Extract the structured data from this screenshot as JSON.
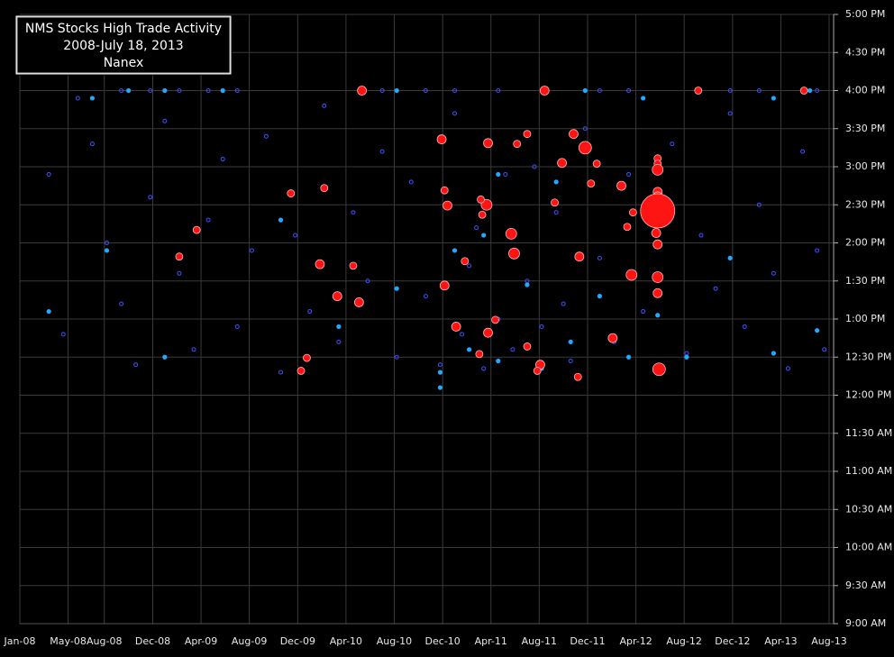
{
  "chart_data": {
    "type": "scatter",
    "title": [
      "NMS Stocks High Trade Activity",
      "2008-July 18, 2013",
      "Nanex"
    ],
    "grid": true,
    "xlim": [
      2008,
      2013.583
    ],
    "xticks": [
      {
        "value": 2008,
        "label": "Jan-08"
      },
      {
        "value": 2008.333,
        "label": "May-08"
      },
      {
        "value": 2008.583,
        "label": "Aug-08"
      },
      {
        "value": 2008.917,
        "label": "Dec-08"
      },
      {
        "value": 2009.25,
        "label": "Apr-09"
      },
      {
        "value": 2009.583,
        "label": "Aug-09"
      },
      {
        "value": 2009.917,
        "label": "Dec-09"
      },
      {
        "value": 2010.25,
        "label": "Apr-10"
      },
      {
        "value": 2010.583,
        "label": "Aug-10"
      },
      {
        "value": 2010.917,
        "label": "Dec-10"
      },
      {
        "value": 2011.25,
        "label": "Apr-11"
      },
      {
        "value": 2011.583,
        "label": "Aug-11"
      },
      {
        "value": 2011.917,
        "label": "Dec-11"
      },
      {
        "value": 2012.25,
        "label": "Apr-12"
      },
      {
        "value": 2012.583,
        "label": "Aug-12"
      },
      {
        "value": 2012.917,
        "label": "Dec-12"
      },
      {
        "value": 2013.25,
        "label": "Apr-13"
      },
      {
        "value": 2013.583,
        "label": "Aug-13"
      }
    ],
    "ylim": [
      9,
      17
    ],
    "yticks": [
      {
        "value": 9,
        "label": "9:00 AM"
      },
      {
        "value": 9.5,
        "label": "9:30 AM"
      },
      {
        "value": 10,
        "label": "10:00 AM"
      },
      {
        "value": 10.5,
        "label": "10:30 AM"
      },
      {
        "value": 11,
        "label": "11:00 AM"
      },
      {
        "value": 11.5,
        "label": "11:30 AM"
      },
      {
        "value": 12,
        "label": "12:00 PM"
      },
      {
        "value": 12.5,
        "label": "12:30 PM"
      },
      {
        "value": 13,
        "label": "1:00 PM"
      },
      {
        "value": 13.5,
        "label": "1:30 PM"
      },
      {
        "value": 14,
        "label": "2:00 PM"
      },
      {
        "value": 14.5,
        "label": "2:30 PM"
      },
      {
        "value": 15,
        "label": "3:00 PM"
      },
      {
        "value": 15.5,
        "label": "3:30 PM"
      },
      {
        "value": 16,
        "label": "4:00 PM"
      },
      {
        "value": 16.5,
        "label": "4:30 PM"
      },
      {
        "value": 17,
        "label": "5:00 PM"
      }
    ],
    "series": [
      {
        "color": "#3d52ff",
        "marker": "hollow",
        "x": [
          2008.7,
          2008.9,
          2009.1,
          2009.3,
          2009.5,
          2010.5,
          2010.8,
          2011.0,
          2011.3,
          2012.0,
          2012.2,
          2012.9,
          2013.1,
          2013.5,
          2008.2,
          2008.3,
          2008.4,
          2008.5,
          2008.6,
          2008.7,
          2008.8,
          2008.9,
          2009.0,
          2009.1,
          2009.2,
          2009.3,
          2009.4,
          2009.5,
          2009.6,
          2009.7,
          2009.8,
          2009.9,
          2010.0,
          2010.1,
          2010.2,
          2010.3,
          2010.4,
          2010.5,
          2010.6,
          2010.7,
          2010.8,
          2010.9,
          2011.0,
          2011.05,
          2011.1,
          2011.15,
          2011.2,
          2011.3,
          2011.35,
          2011.4,
          2011.5,
          2011.55,
          2011.6,
          2011.7,
          2011.75,
          2011.8,
          2011.9,
          2012.0,
          2012.1,
          2012.2,
          2012.3,
          2012.5,
          2012.6,
          2012.7,
          2012.8,
          2012.9,
          2013.0,
          2013.1,
          2013.2,
          2013.3,
          2013.4,
          2013.5,
          2013.55
        ],
        "values": [
          16,
          16,
          16,
          16,
          16,
          16,
          16,
          16,
          16,
          16,
          16,
          16,
          16,
          16,
          14.9,
          12.8,
          15.9,
          15.3,
          14.0,
          13.2,
          12.4,
          14.6,
          15.6,
          13.6,
          12.6,
          14.3,
          15.1,
          12.9,
          13.9,
          15.4,
          12.3,
          14.1,
          13.1,
          15.8,
          12.7,
          14.4,
          13.5,
          15.2,
          12.5,
          14.8,
          13.3,
          12.4,
          15.7,
          12.8,
          13.7,
          14.2,
          12.35,
          13.0,
          14.9,
          12.6,
          13.5,
          15.0,
          12.9,
          14.4,
          13.2,
          12.45,
          15.5,
          13.8,
          12.7,
          14.9,
          13.1,
          15.3,
          12.55,
          14.1,
          13.4,
          15.7,
          12.9,
          14.5,
          13.6,
          12.35,
          15.2,
          13.9,
          12.6
        ]
      },
      {
        "color": "#22a8ff",
        "marker": "filled",
        "x": [
          2008.5,
          2008.75,
          2009.0,
          2009.4,
          2010.6,
          2011.9,
          2012.3,
          2013.2,
          2013.45,
          2008.2,
          2008.6,
          2009.0,
          2009.8,
          2010.2,
          2010.6,
          2010.9,
          2011.0,
          2011.1,
          2011.2,
          2011.3,
          2011.5,
          2011.6,
          2011.7,
          2011.8,
          2012.0,
          2012.2,
          2012.4,
          2012.4,
          2012.6,
          2012.9,
          2013.2,
          2013.5,
          2011.3,
          2010.9
        ],
        "values": [
          15.9,
          16.0,
          16.0,
          16.0,
          16.0,
          16.0,
          15.9,
          15.9,
          16.0,
          13.1,
          13.9,
          12.5,
          14.3,
          12.9,
          13.4,
          12.3,
          13.9,
          12.6,
          14.1,
          12.45,
          13.45,
          12.35,
          14.8,
          12.7,
          13.3,
          12.5,
          13.05,
          14.25,
          12.5,
          13.8,
          12.55,
          12.85,
          14.9,
          12.1
        ]
      },
      {
        "color": "#ff1414",
        "marker": "bubble",
        "x": [
          2010.36,
          2011.62,
          2012.68,
          2013.41,
          2010.91,
          2011.23,
          2011.43,
          2011.5,
          2011.82,
          2011.9,
          2011.74,
          2011.98,
          2012.4,
          2012.4,
          2012.4,
          2012.15,
          2011.94,
          2012.4,
          2012.4,
          2012.4,
          2012.23,
          2011.22,
          2010.95,
          2011.18,
          2011.19,
          2010.93,
          2011.69,
          2009.87,
          2010.1,
          2009.22,
          2011.39,
          2012.19,
          2012.39,
          2012.4,
          2011.41,
          2011.86,
          2009.1,
          2010.07,
          2010.3,
          2011.07,
          2012.22,
          2012.4,
          2010.93,
          2012.4,
          2010.19,
          2010.34,
          2011.28,
          2011.01,
          2011.23,
          2012.09,
          2011.5,
          2011.17,
          2009.98,
          2011.59,
          2009.94,
          2011.57,
          2012.41,
          2011.85
        ],
        "values": [
          16.0,
          16.0,
          16.0,
          16.0,
          15.36,
          15.31,
          15.3,
          15.43,
          15.43,
          15.25,
          15.05,
          15.04,
          15.11,
          15.04,
          14.96,
          14.75,
          14.78,
          14.67,
          14.61,
          14.42,
          14.4,
          14.5,
          14.49,
          14.57,
          14.37,
          14.69,
          14.53,
          14.65,
          14.72,
          14.17,
          14.12,
          14.21,
          14.13,
          13.98,
          13.86,
          13.82,
          13.82,
          13.72,
          13.7,
          13.76,
          13.58,
          13.55,
          13.44,
          13.34,
          13.3,
          13.22,
          12.99,
          12.9,
          12.82,
          12.75,
          12.64,
          12.54,
          12.49,
          12.4,
          12.32,
          12.32,
          12.34,
          12.24
        ],
        "sizes": [
          5,
          5,
          4,
          4,
          5,
          5,
          4,
          4,
          5,
          7,
          5,
          4,
          4,
          4,
          6,
          5,
          4,
          5,
          5,
          19,
          4,
          6,
          5,
          4,
          4,
          4,
          4,
          4,
          4,
          4,
          6,
          4,
          5,
          5,
          6,
          5,
          4,
          5,
          4,
          4,
          6,
          6,
          5,
          5,
          5,
          5,
          4,
          5,
          5,
          5,
          4,
          4,
          4,
          5,
          4,
          4,
          7,
          4
        ]
      }
    ]
  }
}
